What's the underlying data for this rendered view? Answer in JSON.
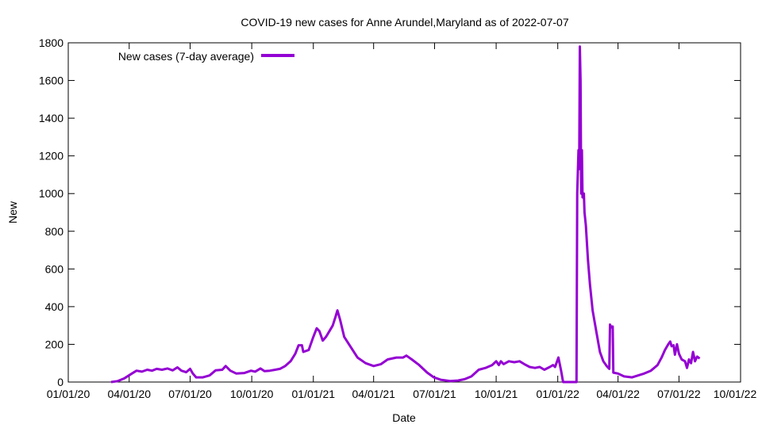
{
  "chart_data": {
    "type": "line",
    "title": "COVID-19 new cases for Anne Arundel,Maryland as of 2022-07-07",
    "xlabel": "Date",
    "ylabel": "New",
    "xlim": [
      "2020-01-01",
      "2022-10-01"
    ],
    "ylim": [
      0,
      1800
    ],
    "x_ticks": [
      "01/01/20",
      "04/01/20",
      "07/01/20",
      "10/01/20",
      "01/01/21",
      "04/01/21",
      "07/01/21",
      "10/01/21",
      "01/01/22",
      "04/01/22",
      "07/01/22",
      "10/01/22"
    ],
    "y_ticks": [
      0,
      200,
      400,
      600,
      800,
      1000,
      1200,
      1400,
      1600,
      1800
    ],
    "grid": false,
    "legend": "top-left",
    "series": [
      {
        "name": "New cases (7-day average)",
        "color": "#9400D3",
        "points": [
          [
            "2020-03-05",
            0
          ],
          [
            "2020-03-15",
            5
          ],
          [
            "2020-03-25",
            20
          ],
          [
            "2020-04-05",
            45
          ],
          [
            "2020-04-12",
            60
          ],
          [
            "2020-04-20",
            55
          ],
          [
            "2020-04-28",
            65
          ],
          [
            "2020-05-05",
            60
          ],
          [
            "2020-05-12",
            70
          ],
          [
            "2020-05-20",
            65
          ],
          [
            "2020-05-28",
            72
          ],
          [
            "2020-06-05",
            62
          ],
          [
            "2020-06-12",
            78
          ],
          [
            "2020-06-18",
            60
          ],
          [
            "2020-06-25",
            52
          ],
          [
            "2020-07-01",
            70
          ],
          [
            "2020-07-05",
            45
          ],
          [
            "2020-07-10",
            25
          ],
          [
            "2020-07-20",
            25
          ],
          [
            "2020-07-30",
            35
          ],
          [
            "2020-08-08",
            62
          ],
          [
            "2020-08-18",
            65
          ],
          [
            "2020-08-23",
            85
          ],
          [
            "2020-08-30",
            60
          ],
          [
            "2020-09-08",
            45
          ],
          [
            "2020-09-20",
            48
          ],
          [
            "2020-09-30",
            60
          ],
          [
            "2020-10-06",
            55
          ],
          [
            "2020-10-14",
            72
          ],
          [
            "2020-10-20",
            58
          ],
          [
            "2020-10-28",
            60
          ],
          [
            "2020-11-05",
            65
          ],
          [
            "2020-11-12",
            70
          ],
          [
            "2020-11-20",
            85
          ],
          [
            "2020-11-28",
            110
          ],
          [
            "2020-12-05",
            150
          ],
          [
            "2020-12-10",
            195
          ],
          [
            "2020-12-15",
            195
          ],
          [
            "2020-12-17",
            160
          ],
          [
            "2020-12-25",
            170
          ],
          [
            "2021-01-01",
            240
          ],
          [
            "2021-01-06",
            285
          ],
          [
            "2021-01-10",
            270
          ],
          [
            "2021-01-15",
            220
          ],
          [
            "2021-01-20",
            240
          ],
          [
            "2021-01-25",
            270
          ],
          [
            "2021-01-30",
            300
          ],
          [
            "2021-02-03",
            345
          ],
          [
            "2021-02-06",
            380
          ],
          [
            "2021-02-10",
            330
          ],
          [
            "2021-02-16",
            240
          ],
          [
            "2021-02-25",
            190
          ],
          [
            "2021-03-08",
            130
          ],
          [
            "2021-03-20",
            100
          ],
          [
            "2021-04-01",
            85
          ],
          [
            "2021-04-12",
            95
          ],
          [
            "2021-04-22",
            120
          ],
          [
            "2021-05-05",
            130
          ],
          [
            "2021-05-15",
            130
          ],
          [
            "2021-05-20",
            140
          ],
          [
            "2021-05-28",
            120
          ],
          [
            "2021-06-08",
            90
          ],
          [
            "2021-06-20",
            50
          ],
          [
            "2021-06-30",
            25
          ],
          [
            "2021-07-10",
            12
          ],
          [
            "2021-07-25",
            5
          ],
          [
            "2021-08-05",
            8
          ],
          [
            "2021-08-15",
            15
          ],
          [
            "2021-08-25",
            30
          ],
          [
            "2021-09-05",
            65
          ],
          [
            "2021-09-15",
            75
          ],
          [
            "2021-09-25",
            90
          ],
          [
            "2021-10-01",
            110
          ],
          [
            "2021-10-05",
            90
          ],
          [
            "2021-10-08",
            110
          ],
          [
            "2021-10-12",
            95
          ],
          [
            "2021-10-20",
            110
          ],
          [
            "2021-10-28",
            105
          ],
          [
            "2021-11-05",
            110
          ],
          [
            "2021-11-12",
            95
          ],
          [
            "2021-11-20",
            80
          ],
          [
            "2021-11-28",
            75
          ],
          [
            "2021-12-05",
            80
          ],
          [
            "2021-12-12",
            65
          ],
          [
            "2021-12-20",
            80
          ],
          [
            "2021-12-25",
            90
          ],
          [
            "2021-12-28",
            80
          ],
          [
            "2022-01-02",
            130
          ],
          [
            "2022-01-06",
            60
          ],
          [
            "2022-01-09",
            0
          ],
          [
            "2022-01-20",
            0
          ],
          [
            "2022-01-29",
            0
          ],
          [
            "2022-01-30",
            1000
          ],
          [
            "2022-02-01",
            1230
          ],
          [
            "2022-02-02",
            1130
          ],
          [
            "2022-02-03",
            1780
          ],
          [
            "2022-02-04",
            1600
          ],
          [
            "2022-02-05",
            1000
          ],
          [
            "2022-02-06",
            1230
          ],
          [
            "2022-02-07",
            980
          ],
          [
            "2022-02-09",
            1000
          ],
          [
            "2022-02-10",
            900
          ],
          [
            "2022-02-12",
            830
          ],
          [
            "2022-02-15",
            650
          ],
          [
            "2022-02-18",
            520
          ],
          [
            "2022-02-22",
            380
          ],
          [
            "2022-02-28",
            260
          ],
          [
            "2022-03-05",
            160
          ],
          [
            "2022-03-10",
            110
          ],
          [
            "2022-03-15",
            85
          ],
          [
            "2022-03-19",
            70
          ],
          [
            "2022-03-20",
            305
          ],
          [
            "2022-03-22",
            290
          ],
          [
            "2022-03-24",
            295
          ],
          [
            "2022-03-25",
            50
          ],
          [
            "2022-04-01",
            45
          ],
          [
            "2022-04-10",
            30
          ],
          [
            "2022-04-22",
            25
          ],
          [
            "2022-05-01",
            35
          ],
          [
            "2022-05-10",
            45
          ],
          [
            "2022-05-20",
            60
          ],
          [
            "2022-05-30",
            90
          ],
          [
            "2022-06-05",
            130
          ],
          [
            "2022-06-10",
            170
          ],
          [
            "2022-06-15",
            200
          ],
          [
            "2022-06-18",
            215
          ],
          [
            "2022-06-20",
            190
          ],
          [
            "2022-06-23",
            195
          ],
          [
            "2022-06-25",
            145
          ],
          [
            "2022-06-28",
            200
          ],
          [
            "2022-07-01",
            150
          ],
          [
            "2022-07-05",
            120
          ],
          [
            "2022-07-10",
            110
          ],
          [
            "2022-07-13",
            75
          ],
          [
            "2022-07-16",
            120
          ],
          [
            "2022-07-19",
            100
          ],
          [
            "2022-07-22",
            160
          ],
          [
            "2022-07-25",
            110
          ],
          [
            "2022-07-28",
            135
          ],
          [
            "2022-08-01",
            125
          ]
        ]
      }
    ]
  }
}
